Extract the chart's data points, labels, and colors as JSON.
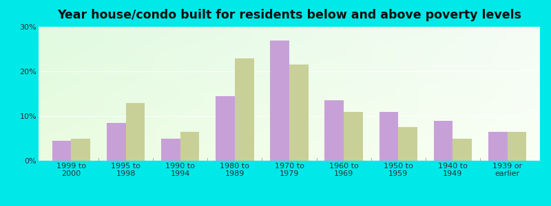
{
  "title": "Year house/condo built for residents below and above poverty levels",
  "categories": [
    "1999 to\n2000",
    "1995 to\n1998",
    "1990 to\n1994",
    "1980 to\n1989",
    "1970 to\n1979",
    "1960 to\n1969",
    "1950 to\n1959",
    "1940 to\n1949",
    "1939 or\nearlier"
  ],
  "below_poverty": [
    4.5,
    8.5,
    5.0,
    14.5,
    27.0,
    13.5,
    11.0,
    9.0,
    6.5
  ],
  "above_poverty": [
    5.0,
    13.0,
    6.5,
    23.0,
    21.5,
    11.0,
    7.5,
    5.0,
    6.5
  ],
  "below_color": "#c8a0d8",
  "above_color": "#c8d098",
  "ylim": [
    0,
    30
  ],
  "yticks": [
    0,
    10,
    20,
    30
  ],
  "ytick_labels": [
    "0%",
    "10%",
    "20%",
    "30%"
  ],
  "background_color": "#00e8e8",
  "bar_width": 0.35,
  "title_fontsize": 12.5,
  "tick_fontsize": 8
}
